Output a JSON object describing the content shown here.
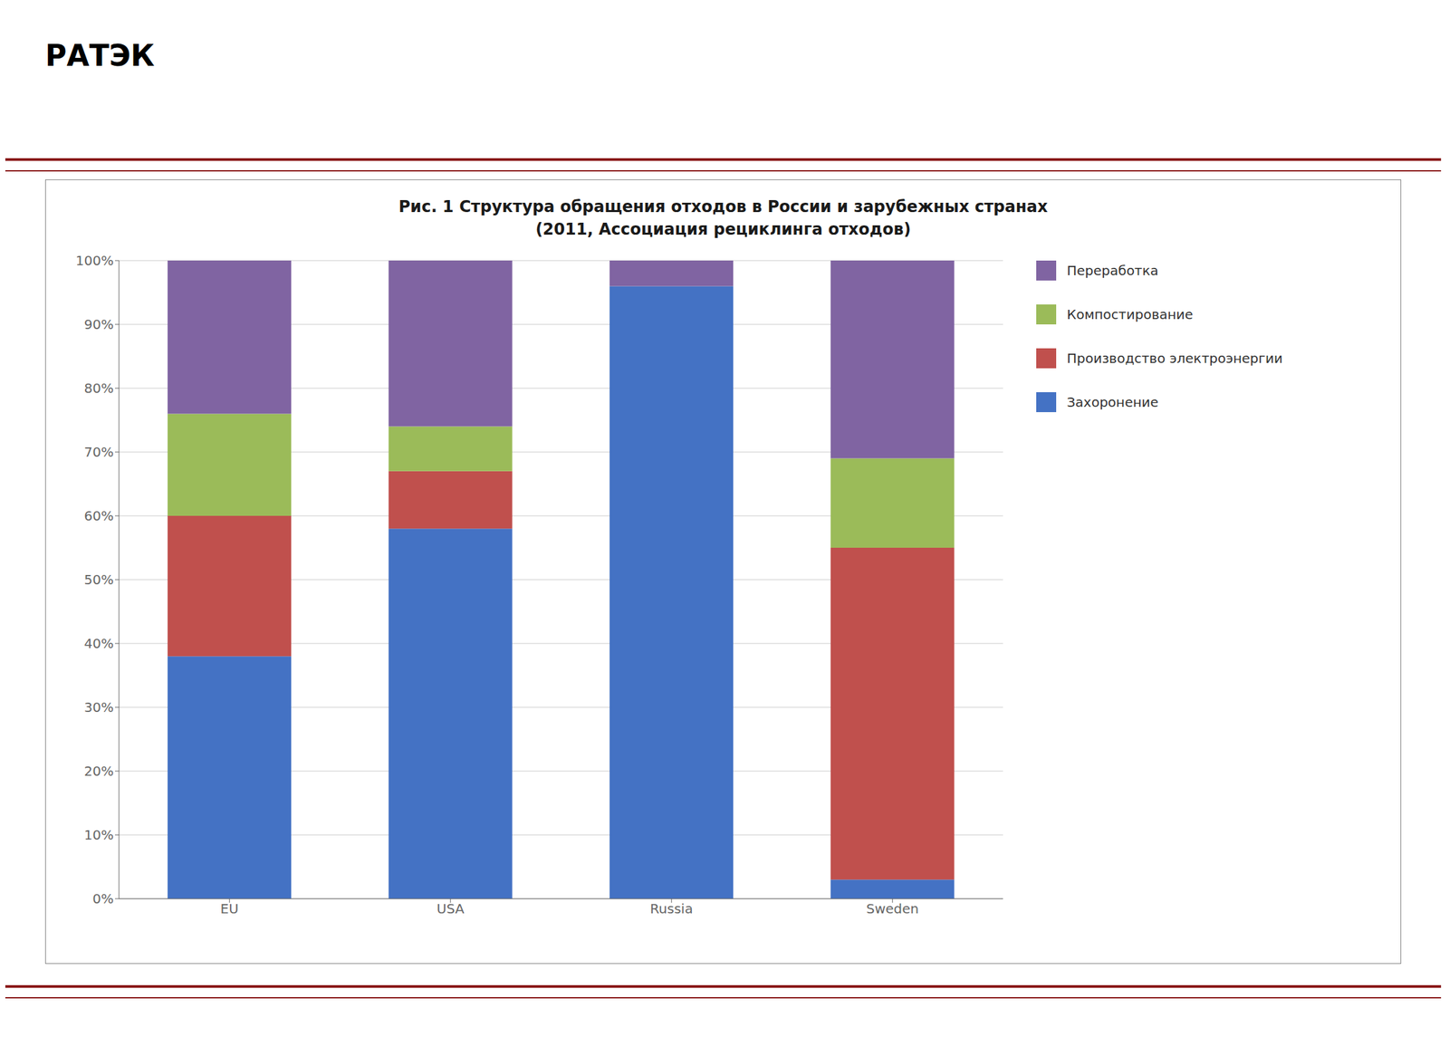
{
  "chart_data": {
    "type": "bar",
    "stacked": true,
    "title": "Рис. 1 Структура обращения отходов в России и зарубежных странах",
    "subtitle": "(2011, Ассоциация рециклинга отходов)",
    "annotations": [
      "РАТЭК"
    ],
    "categories": [
      "EU",
      "USA",
      "Russia",
      "Sweden"
    ],
    "series": [
      {
        "name": "Захоронение",
        "color": "#4472C4",
        "values": [
          38,
          58,
          96,
          3
        ]
      },
      {
        "name": "Производство электроэнергии",
        "color": "#C0504D",
        "values": [
          22,
          9,
          0,
          52
        ]
      },
      {
        "name": "Компостирование",
        "color": "#9BBB59",
        "values": [
          16,
          7,
          0,
          14
        ]
      },
      {
        "name": "Переработка",
        "color": "#8064A2",
        "values": [
          24,
          26,
          4,
          31
        ]
      }
    ],
    "ylim": [
      0,
      100
    ],
    "yticks": [
      {
        "value": 0,
        "label": "0%"
      },
      {
        "value": 10,
        "label": "10%"
      },
      {
        "value": 20,
        "label": "20%"
      },
      {
        "value": 30,
        "label": "30%"
      },
      {
        "value": 40,
        "label": "40%"
      },
      {
        "value": 50,
        "label": "50%"
      },
      {
        "value": 60,
        "label": "60%"
      },
      {
        "value": 70,
        "label": "70%"
      },
      {
        "value": 80,
        "label": "80%"
      },
      {
        "value": 90,
        "label": "90%"
      },
      {
        "value": 100,
        "label": "100%"
      }
    ],
    "grid": true,
    "legend": "right"
  }
}
